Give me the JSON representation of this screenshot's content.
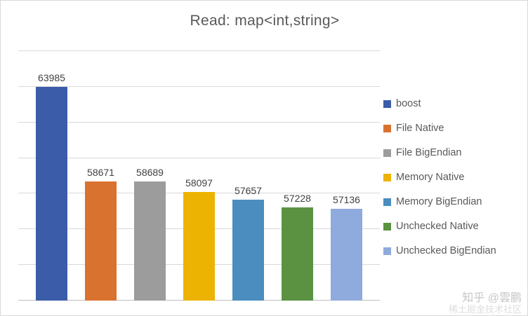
{
  "chart_data": {
    "type": "bar",
    "title": "Read: map<int,string>",
    "categories": [
      "boost",
      "File Native",
      "File BigEndian",
      "Memory Native",
      "Memory BigEndian",
      "Unchecked Native",
      "Unchecked BigEndian"
    ],
    "values": [
      63985,
      58671,
      58689,
      58097,
      57657,
      57228,
      57136
    ],
    "colors": [
      "#3b5ca8",
      "#d9722f",
      "#9c9c9c",
      "#edb302",
      "#4a8dbe",
      "#5b9242",
      "#8faadc"
    ],
    "xlabel": "",
    "ylabel": "",
    "ylim": [
      52000,
      66000
    ],
    "grid": true,
    "gridline_count": 8,
    "legend_position": "right",
    "data_labels": true
  },
  "watermark": {
    "line1": "知乎 @雲鹏",
    "line2": "稀土掘金技术社区"
  }
}
